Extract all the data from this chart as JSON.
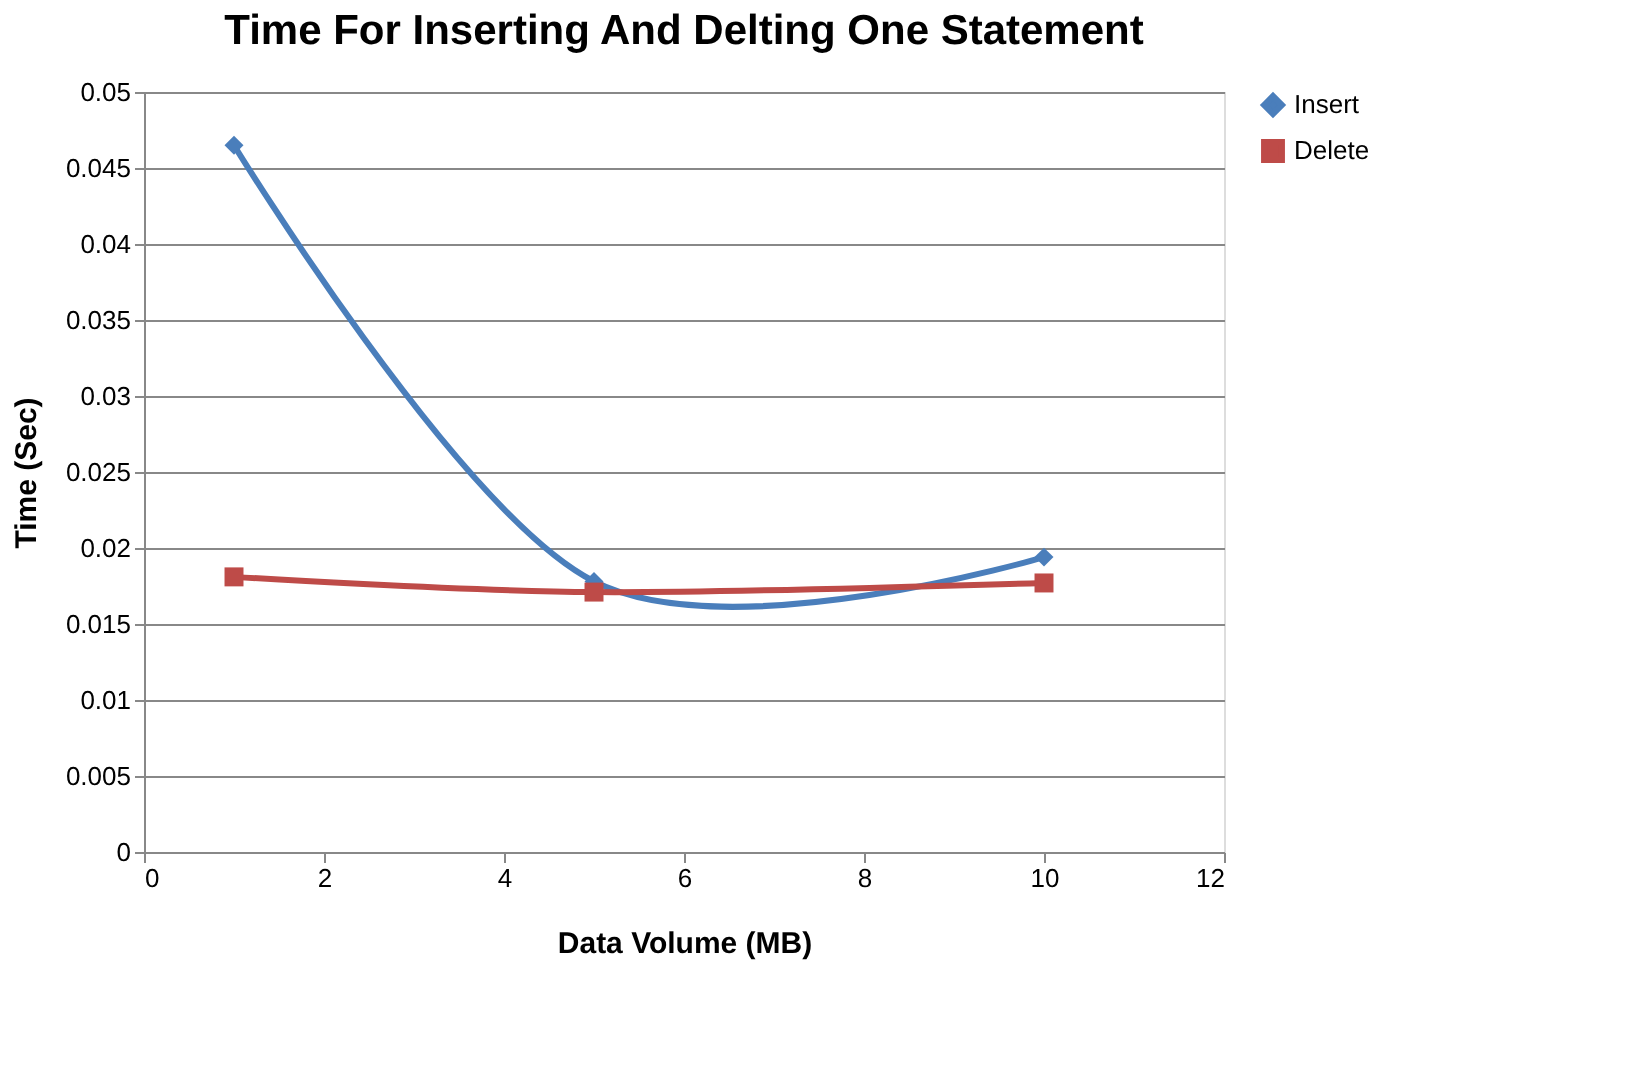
{
  "chart_data": {
    "type": "line",
    "title": "Time For Inserting And Delting One Statement",
    "xlabel": "Data Volume (MB)",
    "ylabel": "Time (Sec)",
    "x": [
      1,
      5,
      10
    ],
    "series": [
      {
        "name": "Insert",
        "color": "#4a7ebb",
        "values": [
          0.0465,
          0.0178,
          0.0194
        ],
        "marker": "diamond"
      },
      {
        "name": "Delete",
        "color": "#be4b48",
        "values": [
          0.0181,
          0.0171,
          0.0177
        ],
        "marker": "square"
      }
    ],
    "xlim": [
      0,
      12
    ],
    "xticks": [
      0,
      2,
      4,
      6,
      8,
      10,
      12
    ],
    "ylim": [
      0,
      0.05
    ],
    "yticks": [
      0,
      0.005,
      0.01,
      0.015,
      0.02,
      0.025,
      0.03,
      0.035,
      0.04,
      0.045,
      0.05
    ],
    "grid": "y",
    "legend": "right",
    "line_style": "solid"
  }
}
